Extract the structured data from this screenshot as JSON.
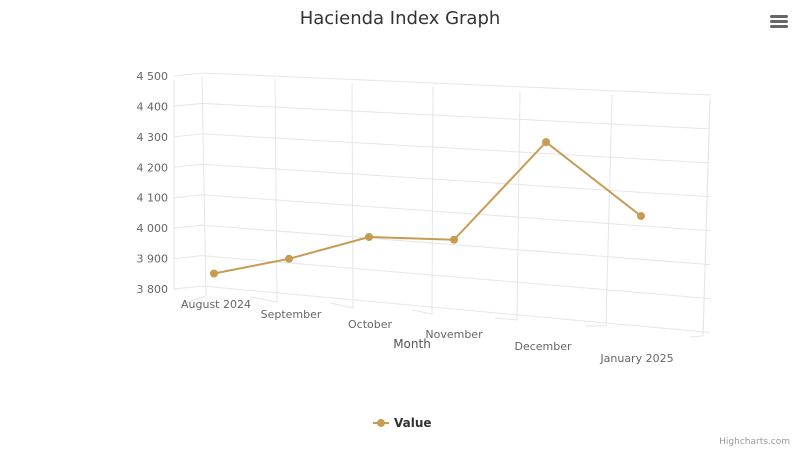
{
  "chart_data": {
    "type": "line",
    "title": "Hacienda Index Graph",
    "xlabel": "Month",
    "ylabel": "",
    "categories": [
      "August 2024",
      "September",
      "October",
      "November",
      "December",
      "January 2025"
    ],
    "series": [
      {
        "name": "Value",
        "values": [
          3835,
          3892,
          3975,
          3975,
          4330,
          4080
        ]
      }
    ],
    "ylim": [
      3800,
      4500
    ],
    "yticks": [
      3800,
      3900,
      4000,
      4100,
      4200,
      4300,
      4400,
      4500
    ],
    "ytick_labels": [
      "3 800",
      "3 900",
      "4 000",
      "4 100",
      "4 200",
      "4 300",
      "4 400",
      "4 500"
    ],
    "grid": true,
    "legend_position": "bottom-center",
    "render_style": "3d perspective",
    "colors": {
      "series": "#C89B52",
      "grid": "#e6e6e6",
      "axis": "#cccccc"
    }
  },
  "ui": {
    "menu_icon": "hamburger-menu-icon",
    "credits": "Highcharts.com"
  }
}
